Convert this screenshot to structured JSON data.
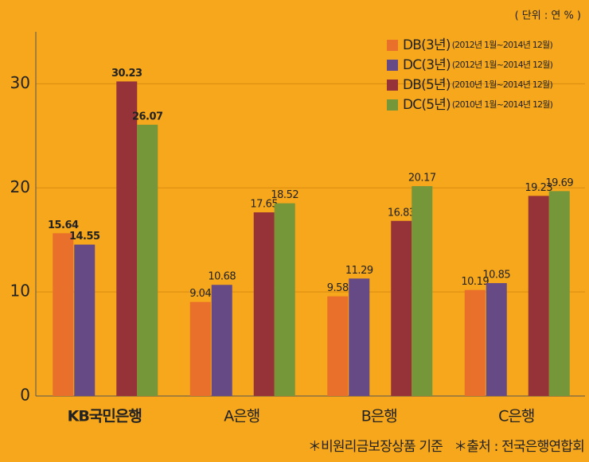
{
  "chart_data": {
    "type": "bar",
    "unit": "( 단위 : 연 % )",
    "categories": [
      "KB국민은행",
      "A은행",
      "B은행",
      "C은행"
    ],
    "series": [
      {
        "name": "DB(3년)",
        "period": "(2012년 1월~2014년 12월)",
        "color": "#e8702a",
        "values": [
          15.64,
          9.04,
          9.58,
          10.19
        ]
      },
      {
        "name": "DC(3년)",
        "period": "(2012년 1월~2014년 12월)",
        "color": "#654a86",
        "values": [
          14.55,
          10.68,
          11.29,
          10.85
        ]
      },
      {
        "name": "DB(5년)",
        "period": "(2010년 1월~2014년 12월)",
        "color": "#953338",
        "values": [
          30.23,
          17.65,
          16.83,
          19.23
        ]
      },
      {
        "name": "DC(5년)",
        "period": "(2010년 1월~2014년 12월)",
        "color": "#76963a",
        "values": [
          26.07,
          18.52,
          20.17,
          19.69
        ]
      }
    ],
    "ylim": [
      0,
      35
    ],
    "yticks": [
      0,
      10,
      20,
      30
    ],
    "grid": true,
    "legend": "top-right",
    "notes": [
      "＊비원리금보장상품 기준",
      "＊출처 : 전국은행연합회"
    ]
  }
}
